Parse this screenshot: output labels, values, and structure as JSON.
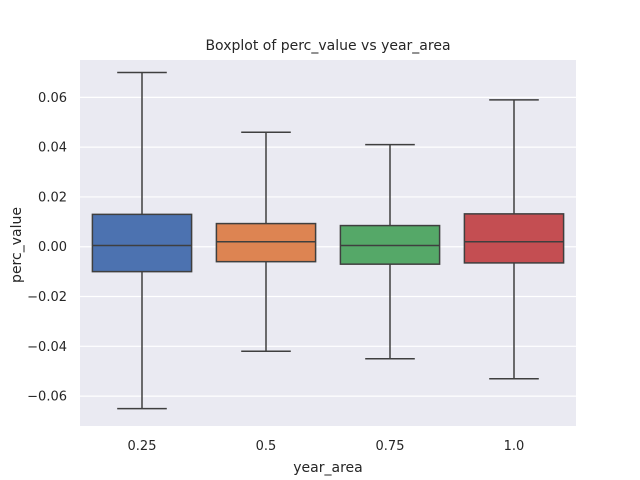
{
  "chart_data": {
    "type": "boxplot",
    "title": "Boxplot of perc_value vs year_area",
    "xlabel": "year_area",
    "ylabel": "perc_value",
    "categories": [
      "0.25",
      "0.5",
      "0.75",
      "1.0"
    ],
    "boxes": [
      {
        "category": "0.25",
        "whisker_low": -0.065,
        "q1": -0.01,
        "median": 0.0005,
        "q3": 0.013,
        "whisker_high": 0.07,
        "color": "#4c72b0"
      },
      {
        "category": "0.5",
        "whisker_low": -0.042,
        "q1": -0.006,
        "median": 0.002,
        "q3": 0.0093,
        "whisker_high": 0.046,
        "color": "#dd8452"
      },
      {
        "category": "0.75",
        "whisker_low": -0.045,
        "q1": -0.007,
        "median": 0.0005,
        "q3": 0.0085,
        "whisker_high": 0.041,
        "color": "#55a868"
      },
      {
        "category": "1.0",
        "whisker_low": -0.053,
        "q1": -0.0065,
        "median": 0.002,
        "q3": 0.0132,
        "whisker_high": 0.059,
        "color": "#c44e52"
      }
    ],
    "ylim": [
      -0.072,
      0.075
    ],
    "yticks": [
      -0.06,
      -0.04,
      -0.02,
      0.0,
      0.02,
      0.04,
      0.06
    ],
    "ytick_labels": [
      "−0.06",
      "−0.04",
      "−0.02",
      "0.00",
      "0.02",
      "0.04",
      "0.06"
    ],
    "grid": true,
    "background_color": "#eaeaf2",
    "line_color": "#3f3f3f",
    "legend": "none"
  }
}
